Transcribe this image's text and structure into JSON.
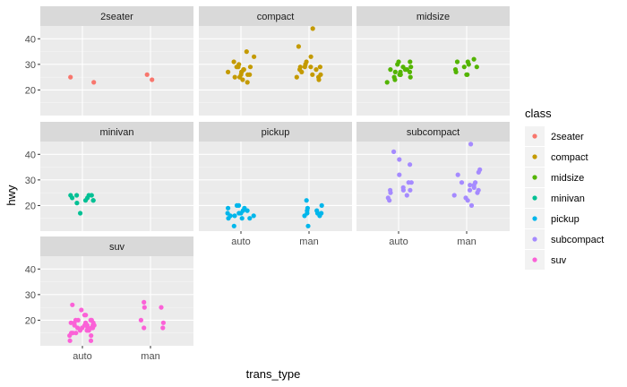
{
  "chart_data": {
    "type": "scatter",
    "xlabel": "trans_type",
    "ylabel": "hwy",
    "x_categories": [
      "auto",
      "man"
    ],
    "y_ticks": [
      20,
      30,
      40
    ],
    "ylim": [
      10,
      45
    ],
    "grid": true,
    "legend": {
      "title": "class",
      "placement": "right",
      "entries": [
        {
          "name": "2seater",
          "color": "#F8766D"
        },
        {
          "name": "compact",
          "color": "#C49A00"
        },
        {
          "name": "midsize",
          "color": "#53B400"
        },
        {
          "name": "minivan",
          "color": "#00C094"
        },
        {
          "name": "pickup",
          "color": "#00B6EB"
        },
        {
          "name": "subcompact",
          "color": "#A58AFF"
        },
        {
          "name": "suv",
          "color": "#FB61D7"
        }
      ]
    },
    "facets": [
      {
        "name": "2seater",
        "color": "#F8766D",
        "points": [
          [
            "auto",
            23
          ],
          [
            "auto",
            25
          ],
          [
            "man",
            24
          ],
          [
            "man",
            26
          ]
        ]
      },
      {
        "name": "compact",
        "color": "#C49A00",
        "points": [
          [
            "auto",
            23
          ],
          [
            "auto",
            24
          ],
          [
            "auto",
            25
          ],
          [
            "auto",
            25
          ],
          [
            "auto",
            26
          ],
          [
            "auto",
            26
          ],
          [
            "auto",
            26
          ],
          [
            "auto",
            27
          ],
          [
            "auto",
            27
          ],
          [
            "auto",
            27
          ],
          [
            "auto",
            28
          ],
          [
            "auto",
            28
          ],
          [
            "auto",
            29
          ],
          [
            "auto",
            29
          ],
          [
            "auto",
            29
          ],
          [
            "auto",
            30
          ],
          [
            "auto",
            31
          ],
          [
            "auto",
            33
          ],
          [
            "auto",
            35
          ],
          [
            "man",
            24
          ],
          [
            "man",
            25
          ],
          [
            "man",
            25
          ],
          [
            "man",
            26
          ],
          [
            "man",
            26
          ],
          [
            "man",
            27
          ],
          [
            "man",
            28
          ],
          [
            "man",
            28
          ],
          [
            "man",
            29
          ],
          [
            "man",
            29
          ],
          [
            "man",
            29
          ],
          [
            "man",
            29
          ],
          [
            "man",
            30
          ],
          [
            "man",
            31
          ],
          [
            "man",
            33
          ],
          [
            "man",
            37
          ],
          [
            "man",
            44
          ]
        ]
      },
      {
        "name": "midsize",
        "color": "#53B400",
        "points": [
          [
            "auto",
            23
          ],
          [
            "auto",
            24
          ],
          [
            "auto",
            25
          ],
          [
            "auto",
            25
          ],
          [
            "auto",
            26
          ],
          [
            "auto",
            26
          ],
          [
            "auto",
            26
          ],
          [
            "auto",
            26
          ],
          [
            "auto",
            27
          ],
          [
            "auto",
            27
          ],
          [
            "auto",
            27
          ],
          [
            "auto",
            28
          ],
          [
            "auto",
            28
          ],
          [
            "auto",
            28
          ],
          [
            "auto",
            29
          ],
          [
            "auto",
            29
          ],
          [
            "auto",
            30
          ],
          [
            "auto",
            31
          ],
          [
            "auto",
            31
          ],
          [
            "man",
            26
          ],
          [
            "man",
            26
          ],
          [
            "man",
            27
          ],
          [
            "man",
            28
          ],
          [
            "man",
            29
          ],
          [
            "man",
            29
          ],
          [
            "man",
            30
          ],
          [
            "man",
            31
          ],
          [
            "man",
            31
          ],
          [
            "man",
            32
          ]
        ]
      },
      {
        "name": "minivan",
        "color": "#00C094",
        "points": [
          [
            "auto",
            17
          ],
          [
            "auto",
            21
          ],
          [
            "auto",
            22
          ],
          [
            "auto",
            22
          ],
          [
            "auto",
            22
          ],
          [
            "auto",
            23
          ],
          [
            "auto",
            23
          ],
          [
            "auto",
            24
          ],
          [
            "auto",
            24
          ],
          [
            "auto",
            24
          ],
          [
            "auto",
            24
          ]
        ]
      },
      {
        "name": "pickup",
        "color": "#00B6EB",
        "points": [
          [
            "auto",
            15
          ],
          [
            "auto",
            15
          ],
          [
            "auto",
            15
          ],
          [
            "auto",
            16
          ],
          [
            "auto",
            16
          ],
          [
            "auto",
            16
          ],
          [
            "auto",
            17
          ],
          [
            "auto",
            17
          ],
          [
            "auto",
            17
          ],
          [
            "auto",
            18
          ],
          [
            "auto",
            18
          ],
          [
            "auto",
            19
          ],
          [
            "auto",
            19
          ],
          [
            "auto",
            20
          ],
          [
            "auto",
            20
          ],
          [
            "auto",
            12
          ],
          [
            "man",
            12
          ],
          [
            "man",
            16
          ],
          [
            "man",
            16
          ],
          [
            "man",
            17
          ],
          [
            "man",
            17
          ],
          [
            "man",
            17
          ],
          [
            "man",
            18
          ],
          [
            "man",
            18
          ],
          [
            "man",
            19
          ],
          [
            "man",
            20
          ],
          [
            "man",
            22
          ]
        ]
      },
      {
        "name": "subcompact",
        "color": "#A58AFF",
        "points": [
          [
            "auto",
            22
          ],
          [
            "auto",
            23
          ],
          [
            "auto",
            24
          ],
          [
            "auto",
            25
          ],
          [
            "auto",
            26
          ],
          [
            "auto",
            26
          ],
          [
            "auto",
            26
          ],
          [
            "auto",
            27
          ],
          [
            "auto",
            29
          ],
          [
            "auto",
            29
          ],
          [
            "auto",
            32
          ],
          [
            "auto",
            36
          ],
          [
            "auto",
            38
          ],
          [
            "auto",
            41
          ],
          [
            "man",
            20
          ],
          [
            "man",
            22
          ],
          [
            "man",
            23
          ],
          [
            "man",
            24
          ],
          [
            "man",
            25
          ],
          [
            "man",
            26
          ],
          [
            "man",
            26
          ],
          [
            "man",
            27
          ],
          [
            "man",
            28
          ],
          [
            "man",
            28
          ],
          [
            "man",
            29
          ],
          [
            "man",
            29
          ],
          [
            "man",
            32
          ],
          [
            "man",
            33
          ],
          [
            "man",
            34
          ],
          [
            "man",
            44
          ]
        ]
      },
      {
        "name": "suv",
        "color": "#FB61D7",
        "points": [
          [
            "auto",
            12
          ],
          [
            "auto",
            12
          ],
          [
            "auto",
            14
          ],
          [
            "auto",
            14
          ],
          [
            "auto",
            15
          ],
          [
            "auto",
            15
          ],
          [
            "auto",
            15
          ],
          [
            "auto",
            16
          ],
          [
            "auto",
            16
          ],
          [
            "auto",
            16
          ],
          [
            "auto",
            17
          ],
          [
            "auto",
            17
          ],
          [
            "auto",
            17
          ],
          [
            "auto",
            17
          ],
          [
            "auto",
            17
          ],
          [
            "auto",
            17
          ],
          [
            "auto",
            17
          ],
          [
            "auto",
            18
          ],
          [
            "auto",
            18
          ],
          [
            "auto",
            18
          ],
          [
            "auto",
            18
          ],
          [
            "auto",
            18
          ],
          [
            "auto",
            19
          ],
          [
            "auto",
            19
          ],
          [
            "auto",
            19
          ],
          [
            "auto",
            19
          ],
          [
            "auto",
            20
          ],
          [
            "auto",
            20
          ],
          [
            "auto",
            20
          ],
          [
            "auto",
            20
          ],
          [
            "auto",
            22
          ],
          [
            "auto",
            22
          ],
          [
            "auto",
            24
          ],
          [
            "auto",
            26
          ],
          [
            "man",
            17
          ],
          [
            "man",
            17
          ],
          [
            "man",
            19
          ],
          [
            "man",
            20
          ],
          [
            "man",
            25
          ],
          [
            "man",
            25
          ],
          [
            "man",
            27
          ]
        ]
      }
    ]
  }
}
